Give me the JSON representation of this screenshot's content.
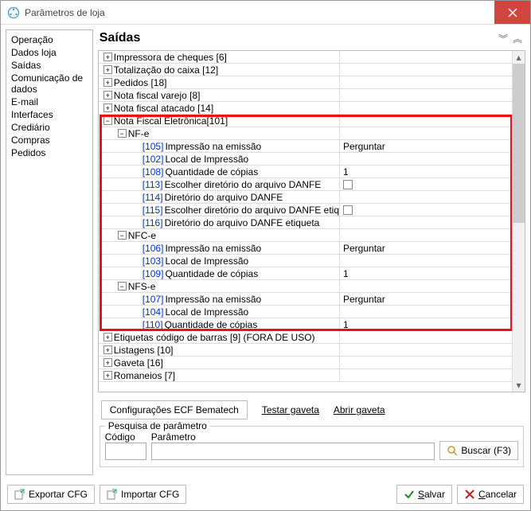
{
  "window": {
    "title": "Parâmetros de loja"
  },
  "sidebar": {
    "items": [
      {
        "label": "Operação"
      },
      {
        "label": "Dados loja"
      },
      {
        "label": "Saídas"
      },
      {
        "label": "Comunicação de dados"
      },
      {
        "label": "E-mail"
      },
      {
        "label": "Interfaces"
      },
      {
        "label": "Crediário"
      },
      {
        "label": "Compras"
      },
      {
        "label": "Pedidos"
      }
    ]
  },
  "main": {
    "heading": "Saídas",
    "rows": [
      {
        "indent": 0,
        "toggle": "+",
        "code": "",
        "label": "Impressora de cheques [6]",
        "value": ""
      },
      {
        "indent": 0,
        "toggle": "+",
        "code": "",
        "label": "Totalização do caixa [12]",
        "value": ""
      },
      {
        "indent": 0,
        "toggle": "+",
        "code": "",
        "label": "Pedidos [18]",
        "value": ""
      },
      {
        "indent": 0,
        "toggle": "+",
        "code": "",
        "label": "Nota fiscal varejo [8]",
        "value": ""
      },
      {
        "indent": 0,
        "toggle": "+",
        "code": "",
        "label": "Nota fiscal atacado [14]",
        "value": ""
      },
      {
        "indent": 0,
        "toggle": "-",
        "code": "",
        "label": "Nota Fiscal Eletrônica[101]",
        "value": ""
      },
      {
        "indent": 1,
        "toggle": "-",
        "code": "",
        "label": "NF-e",
        "value": ""
      },
      {
        "indent": 2,
        "toggle": "",
        "code": "[105]",
        "label": "Impressão na emissão",
        "value": "Perguntar"
      },
      {
        "indent": 2,
        "toggle": "",
        "code": "[102]",
        "label": "Local de Impressão",
        "value": "",
        "dropdown": true
      },
      {
        "indent": 2,
        "toggle": "",
        "code": "[108]",
        "label": "Quantidade de cópias",
        "value": "1"
      },
      {
        "indent": 2,
        "toggle": "",
        "code": "[113]",
        "label": "Escolher diretório do arquivo DANFE",
        "value": "",
        "checkbox": true
      },
      {
        "indent": 2,
        "toggle": "",
        "code": "[114]",
        "label": "Diretório do arquivo DANFE",
        "value": ""
      },
      {
        "indent": 2,
        "toggle": "",
        "code": "[115]",
        "label": "Escolher diretório do arquivo DANFE etiq",
        "value": "",
        "checkbox": true
      },
      {
        "indent": 2,
        "toggle": "",
        "code": "[116]",
        "label": "Diretório do arquivo DANFE etiqueta",
        "value": ""
      },
      {
        "indent": 1,
        "toggle": "-",
        "code": "",
        "label": "NFC-e",
        "value": ""
      },
      {
        "indent": 2,
        "toggle": "",
        "code": "[106]",
        "label": "Impressão na emissão",
        "value": "Perguntar"
      },
      {
        "indent": 2,
        "toggle": "",
        "code": "[103]",
        "label": "Local de Impressão",
        "value": "",
        "dropdown": true
      },
      {
        "indent": 2,
        "toggle": "",
        "code": "[109]",
        "label": "Quantidade de cópias",
        "value": "1"
      },
      {
        "indent": 1,
        "toggle": "-",
        "code": "",
        "label": "NFS-e",
        "value": ""
      },
      {
        "indent": 2,
        "toggle": "",
        "code": "[107]",
        "label": "Impressão na emissão",
        "value": "Perguntar"
      },
      {
        "indent": 2,
        "toggle": "",
        "code": "[104]",
        "label": "Local de Impressão",
        "value": "",
        "dropdown": true
      },
      {
        "indent": 2,
        "toggle": "",
        "code": "[110]",
        "label": "Quantidade de cópias",
        "value": "1"
      },
      {
        "indent": 0,
        "toggle": "+",
        "code": "",
        "label": "Etiquetas código de barras [9] (FORA DE USO)",
        "value": ""
      },
      {
        "indent": 0,
        "toggle": "+",
        "code": "",
        "label": "Listagens [10]",
        "value": ""
      },
      {
        "indent": 0,
        "toggle": "+",
        "code": "",
        "label": "Gaveta [16]",
        "value": ""
      },
      {
        "indent": 0,
        "toggle": "+",
        "code": "",
        "label": "Romaneios [7]",
        "value": ""
      }
    ]
  },
  "buttons": {
    "ecf": "Configurações ECF Bematech",
    "test_drawer": "Testar gaveta",
    "open_drawer": "Abrir gaveta"
  },
  "search": {
    "legend": "Pesquisa de parâmetro",
    "code_label": "Código",
    "param_label": "Parâmetro",
    "search_btn": "Buscar (F3)"
  },
  "footer": {
    "export": "Exportar CFG",
    "import": "Importar CFG",
    "save": "Salvar",
    "cancel": "Cancelar"
  },
  "colors": {
    "highlight_border": "#e11",
    "link_code": "#0033cc",
    "close_bg": "#d0463f"
  }
}
